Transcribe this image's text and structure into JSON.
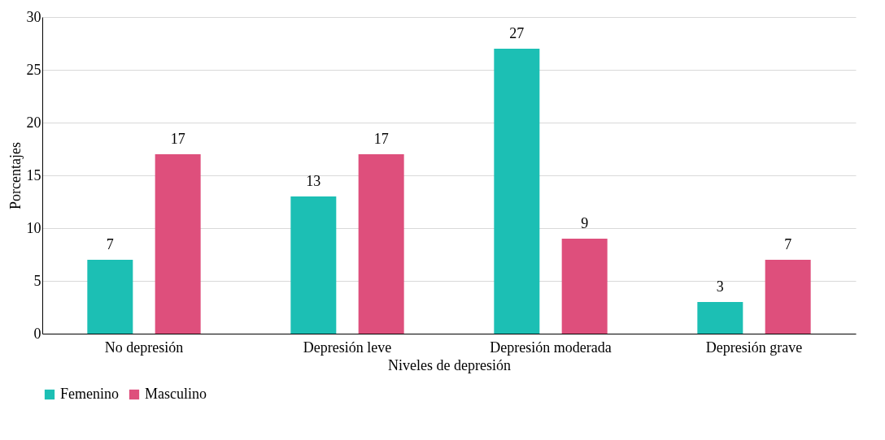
{
  "chart_data": {
    "type": "bar",
    "xlabel": "Niveles de depresión",
    "ylabel": "Porcentajes",
    "categories": [
      "No depresión",
      "Depresión leve",
      "Depresión moderada",
      "Depresión grave"
    ],
    "series": [
      {
        "name": "Femenino",
        "color": "#1cbfb4",
        "values": [
          7,
          13,
          27,
          3
        ]
      },
      {
        "name": "Masculino",
        "color": "#de4f7c",
        "values": [
          17,
          17,
          9,
          7
        ]
      }
    ],
    "ylim": [
      0,
      30
    ],
    "yticks": [
      0,
      5,
      10,
      15,
      20,
      25,
      30
    ],
    "grid": "y",
    "legend": "bottom",
    "data_labels": true
  }
}
